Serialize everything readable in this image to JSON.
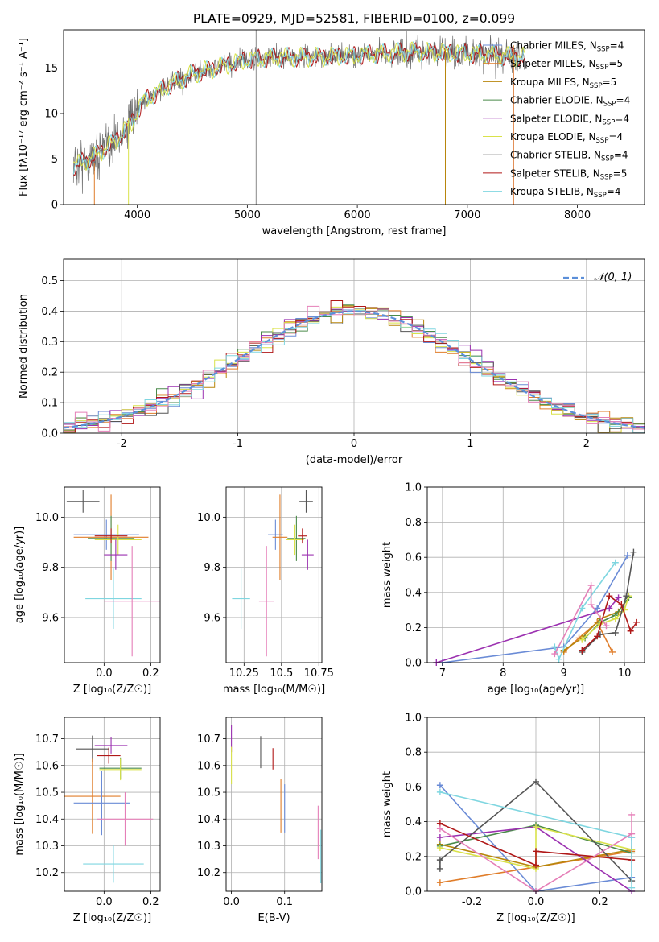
{
  "figure": {
    "title": "PLATE=0929, MJD=52581, FIBERID=0100, z=0.099"
  },
  "colors": {
    "Chabrier MILES": "#6a8bd6",
    "Salpeter MILES": "#e07d2a",
    "Kroupa MILES": "#b8860b",
    "Chabrier ELODIE": "#4a8a4a",
    "Salpeter ELODIE": "#9b30b0",
    "Kroupa ELODIE": "#d9e24a",
    "Chabrier STELIB": "#555555",
    "Salpeter STELIB": "#b01818",
    "Kroupa STELIB": "#7fd6e0",
    "pink": "#e57fb8",
    "dashed": "#5b8fd9"
  },
  "chart_data": [
    {
      "id": "spectrum",
      "type": "line",
      "xlabel": "wavelength [Angstrom, rest frame]",
      "ylabel": "Flux [fλ10⁻¹⁷ erg cm⁻² s⁻¹ A⁻¹]",
      "xlim": [
        3330,
        8610
      ],
      "ylim": [
        0,
        19.2
      ],
      "xticks": [
        4000,
        5000,
        6000,
        7000,
        8000
      ],
      "yticks": [
        0,
        5,
        10,
        15
      ],
      "grid": false,
      "legend_position": "top-right",
      "continuum": {
        "x": [
          3420,
          3600,
          3800,
          3950,
          4050,
          4300,
          4500,
          4800,
          5000,
          5300,
          5600,
          6000,
          6500,
          7000,
          7500
        ],
        "y": [
          4.2,
          5.2,
          7.0,
          9.0,
          11.3,
          13.2,
          14.3,
          15.3,
          15.9,
          16.2,
          16.2,
          16.4,
          16.8,
          16.6,
          16.2
        ]
      },
      "series": [
        {
          "name": "Chabrier MILES, N_SSP=4",
          "label": "Chabrier MILES, N",
          "nssp": "=4"
        },
        {
          "name": "Salpeter MILES, N_SSP=5",
          "label": "Salpeter MILES, N",
          "nssp": "=5"
        },
        {
          "name": "Kroupa MILES, N_SSP=5",
          "label": "Kroupa MILES, N",
          "nssp": "=5"
        },
        {
          "name": "Chabrier ELODIE, N_SSP=4",
          "label": "Chabrier ELODIE, N",
          "nssp": "=4"
        },
        {
          "name": "Salpeter ELODIE, N_SSP=4",
          "label": "Salpeter ELODIE, N",
          "nssp": "=4"
        },
        {
          "name": "Kroupa ELODIE, N_SSP=4",
          "label": "Kroupa ELODIE, N",
          "nssp": "=4"
        },
        {
          "name": "Chabrier STELIB, N_SSP=4",
          "label": "Chabrier STELIB, N",
          "nssp": "=4"
        },
        {
          "name": "Salpeter STELIB, N_SSP=5",
          "label": "Salpeter STELIB, N",
          "nssp": "=5"
        },
        {
          "name": "Kroupa STELIB, N_SSP=4",
          "label": "Kroupa STELIB, N",
          "nssp": "=4"
        }
      ],
      "spikes": [
        {
          "x": 3610,
          "y0": 0,
          "y1": 4.5,
          "color": "#e07d2a"
        },
        {
          "x": 3920,
          "y0": 0,
          "y1": 9.5,
          "color": "#d9e24a"
        },
        {
          "x": 5080,
          "y0": 0,
          "y1": 19.2,
          "color": "#888888"
        },
        {
          "x": 6800,
          "y0": 0,
          "y1": 17.0,
          "color": "#b8860b"
        },
        {
          "x": 7420,
          "y0": 0,
          "y1": 17.5,
          "color": "#e07d2a"
        },
        {
          "x": 7415,
          "y0": 0,
          "y1": 17.0,
          "color": "#b01818"
        }
      ]
    },
    {
      "id": "residuals",
      "type": "line",
      "xlabel": "(data-model)/error",
      "ylabel": "Normed distribution",
      "xlim": [
        -2.5,
        2.5
      ],
      "ylim": [
        0,
        0.57
      ],
      "xticks": [
        -2,
        -1,
        0,
        1,
        2
      ],
      "yticks": [
        0.0,
        0.1,
        0.2,
        0.3,
        0.4,
        0.5
      ],
      "grid": true,
      "legend_position": "top-right",
      "legend_label": "𝒩(0, 1)",
      "bins": {
        "start": -2.5,
        "width": 0.1,
        "count": 50
      }
    },
    {
      "id": "age_vs_Z",
      "type": "scatter",
      "xlabel": "Z [log₁₀(Z/Z☉)]",
      "ylabel": "age  [log₁₀(age/yr)]",
      "xlim": [
        -0.17,
        0.24
      ],
      "ylim": [
        9.42,
        10.12
      ],
      "xticks": [
        0.0,
        0.2
      ],
      "yticks": [
        9.6,
        9.8,
        10.0
      ],
      "grid": true,
      "points": [
        {
          "x": -0.09,
          "y": 10.063,
          "xerr": 0.07,
          "yerr": 0.045,
          "color": "#555555"
        },
        {
          "x": 0.01,
          "y": 9.93,
          "xerr": 0.14,
          "yerr": 0.06,
          "color": "#6a8bd6"
        },
        {
          "x": 0.03,
          "y": 9.92,
          "xerr": 0.16,
          "yerr": 0.17,
          "color": "#e07d2a"
        },
        {
          "x": 0.03,
          "y": 9.915,
          "xerr": 0.1,
          "yerr": 0.09,
          "color": "#4a8a4a"
        },
        {
          "x": 0.06,
          "y": 9.91,
          "xerr": 0.1,
          "yerr": 0.06,
          "color": "#d9e24a"
        },
        {
          "x": 0.03,
          "y": 9.925,
          "xerr": 0.07,
          "yerr": 0.03,
          "color": "#b01818"
        },
        {
          "x": 0.05,
          "y": 9.85,
          "xerr": 0.05,
          "yerr": 0.06,
          "color": "#9b30b0"
        },
        {
          "x": 0.04,
          "y": 9.675,
          "xerr": 0.12,
          "yerr": 0.12,
          "color": "#7fd6e0"
        },
        {
          "x": 0.12,
          "y": 9.665,
          "xerr": 0.12,
          "yerr": 0.22,
          "color": "#e57fb8"
        }
      ]
    },
    {
      "id": "age_vs_mass",
      "type": "scatter",
      "xlabel": "mass [log₁₀(M/M☉)]",
      "ylabel": "",
      "xlim": [
        10.13,
        10.77
      ],
      "ylim": [
        9.42,
        10.12
      ],
      "xticks": [
        10.25,
        10.5,
        10.75
      ],
      "yticks": [
        9.6,
        9.8,
        10.0
      ],
      "grid": true,
      "points": [
        {
          "x": 10.665,
          "y": 10.063,
          "xerr": 0.045,
          "yerr": 0.045,
          "color": "#555555"
        },
        {
          "x": 10.46,
          "y": 9.93,
          "xerr": 0.05,
          "yerr": 0.06,
          "color": "#6a8bd6"
        },
        {
          "x": 10.49,
          "y": 9.92,
          "xerr": 0.05,
          "yerr": 0.17,
          "color": "#e07d2a"
        },
        {
          "x": 10.6,
          "y": 9.915,
          "xerr": 0.06,
          "yerr": 0.09,
          "color": "#4a8a4a"
        },
        {
          "x": 10.59,
          "y": 9.91,
          "xerr": 0.06,
          "yerr": 0.06,
          "color": "#d9e24a"
        },
        {
          "x": 10.64,
          "y": 9.925,
          "xerr": 0.03,
          "yerr": 0.03,
          "color": "#b01818"
        },
        {
          "x": 10.675,
          "y": 9.85,
          "xerr": 0.04,
          "yerr": 0.06,
          "color": "#9b30b0"
        },
        {
          "x": 10.23,
          "y": 9.675,
          "xerr": 0.06,
          "yerr": 0.12,
          "color": "#7fd6e0"
        },
        {
          "x": 10.4,
          "y": 9.665,
          "xerr": 0.05,
          "yerr": 0.22,
          "color": "#e57fb8"
        }
      ]
    },
    {
      "id": "mass_weight_vs_age",
      "type": "line",
      "xlabel": "age  [log₁₀(age/yr)]",
      "ylabel": "mass weight",
      "xlim": [
        6.75,
        10.33
      ],
      "ylim": [
        0,
        1.0
      ],
      "xticks": [
        7,
        8,
        9,
        10
      ],
      "yticks": [
        0.0,
        0.2,
        0.4,
        0.6,
        0.8,
        1.0
      ],
      "grid": true,
      "series": [
        {
          "color": "#6a8bd6",
          "x": [
            7.0,
            9.0,
            9.55,
            10.05
          ],
          "y": [
            0.0,
            0.09,
            0.31,
            0.61
          ]
        },
        {
          "color": "#e07d2a",
          "x": [
            9.0,
            9.25,
            9.55,
            9.8
          ],
          "y": [
            0.06,
            0.14,
            0.23,
            0.06
          ]
        },
        {
          "color": "#b8860b",
          "x": [
            9.0,
            9.3,
            9.6,
            9.9,
            10.07
          ],
          "y": [
            0.07,
            0.14,
            0.25,
            0.29,
            0.37
          ]
        },
        {
          "color": "#4a8a4a",
          "x": [
            9.35,
            9.6,
            9.85,
            10.07
          ],
          "y": [
            0.14,
            0.23,
            0.27,
            0.37
          ]
        },
        {
          "color": "#9b30b0",
          "x": [
            6.9,
            9.75,
            9.9
          ],
          "y": [
            0.0,
            0.31,
            0.37
          ]
        },
        {
          "color": "#d9e24a",
          "x": [
            9.3,
            9.6,
            9.85,
            10.0,
            10.07
          ],
          "y": [
            0.13,
            0.22,
            0.25,
            0.3,
            0.38
          ]
        },
        {
          "color": "#555555",
          "x": [
            9.3,
            9.6,
            9.85,
            10.03,
            10.15
          ],
          "y": [
            0.06,
            0.16,
            0.17,
            0.38,
            0.63
          ]
        },
        {
          "color": "#b01818",
          "x": [
            9.3,
            9.55,
            9.75,
            9.95,
            10.1,
            10.2
          ],
          "y": [
            0.07,
            0.15,
            0.38,
            0.33,
            0.18,
            0.23
          ]
        },
        {
          "color": "#7fd6e0",
          "x": [
            8.85,
            8.92,
            9.3,
            9.85
          ],
          "y": [
            0.09,
            0.02,
            0.31,
            0.57
          ]
        },
        {
          "color": "#e57fb8",
          "x": [
            8.85,
            9.45,
            9.45,
            9.7
          ],
          "y": [
            0.05,
            0.44,
            0.33,
            0.21
          ]
        }
      ]
    },
    {
      "id": "mass_vs_Z",
      "type": "scatter",
      "xlabel": "Z [log₁₀(Z/Z☉)]",
      "ylabel": "mass [log₁₀(M/M☉)]",
      "xlim": [
        -0.17,
        0.24
      ],
      "ylim": [
        10.13,
        10.78
      ],
      "xticks": [
        0.0,
        0.2
      ],
      "yticks": [
        10.2,
        10.3,
        10.4,
        10.5,
        10.6,
        10.7
      ],
      "grid": true,
      "points": [
        {
          "x": -0.05,
          "y": 10.662,
          "xerr": 0.07,
          "yerr": 0.05,
          "color": "#555555"
        },
        {
          "x": 0.03,
          "y": 10.675,
          "xerr": 0.07,
          "yerr": 0.03,
          "color": "#9b30b0"
        },
        {
          "x": 0.02,
          "y": 10.637,
          "xerr": 0.05,
          "yerr": 0.03,
          "color": "#b01818"
        },
        {
          "x": 0.07,
          "y": 10.59,
          "xerr": 0.09,
          "yerr": 0.04,
          "color": "#4a8a4a"
        },
        {
          "x": 0.07,
          "y": 10.585,
          "xerr": 0.09,
          "yerr": 0.04,
          "color": "#d9e24a"
        },
        {
          "x": -0.05,
          "y": 10.485,
          "xerr": 0.12,
          "yerr": 0.14,
          "color": "#e07d2a"
        },
        {
          "x": -0.01,
          "y": 10.46,
          "xerr": 0.12,
          "yerr": 0.12,
          "color": "#6a8bd6"
        },
        {
          "x": 0.09,
          "y": 10.4,
          "xerr": 0.12,
          "yerr": 0.1,
          "color": "#e57fb8"
        },
        {
          "x": 0.04,
          "y": 10.232,
          "xerr": 0.13,
          "yerr": 0.07,
          "color": "#7fd6e0"
        }
      ]
    },
    {
      "id": "mass_vs_EBV",
      "type": "scatter",
      "xlabel": "E(B-V)",
      "ylabel": "",
      "xlim": [
        -0.01,
        0.17
      ],
      "ylim": [
        10.13,
        10.78
      ],
      "xticks": [
        0.0,
        0.1
      ],
      "yticks": [
        10.2,
        10.3,
        10.4,
        10.5,
        10.6,
        10.7
      ],
      "grid": true,
      "points": [
        {
          "x": 0.0,
          "y": 10.7,
          "xerr": 0,
          "yerr": 0.05,
          "color": "#9b30b0"
        },
        {
          "x": 0.0,
          "y": 10.6,
          "xerr": 0,
          "yerr": 0.07,
          "color": "#d9e24a"
        },
        {
          "x": 0.055,
          "y": 10.65,
          "xerr": 0,
          "yerr": 0.06,
          "color": "#555555"
        },
        {
          "x": 0.078,
          "y": 10.625,
          "xerr": 0,
          "yerr": 0.04,
          "color": "#b01818"
        },
        {
          "x": 0.093,
          "y": 10.45,
          "xerr": 0,
          "yerr": 0.1,
          "color": "#e07d2a"
        },
        {
          "x": 0.1,
          "y": 10.44,
          "xerr": 0,
          "yerr": 0.09,
          "color": "#6a8bd6"
        },
        {
          "x": 0.163,
          "y": 10.35,
          "xerr": 0,
          "yerr": 0.1,
          "color": "#e57fb8"
        },
        {
          "x": 0.168,
          "y": 10.26,
          "xerr": 0,
          "yerr": 0.1,
          "color": "#7fd6e0"
        }
      ]
    },
    {
      "id": "mass_weight_vs_Z",
      "type": "line",
      "xlabel": "Z [log₁₀(Z/Z☉)]",
      "ylabel": "mass weight",
      "xlim": [
        -0.34,
        0.34
      ],
      "ylim": [
        0,
        1.0
      ],
      "xticks": [
        -0.2,
        0.0,
        0.2
      ],
      "yticks": [
        0.0,
        0.2,
        0.4,
        0.6,
        0.8,
        1.0
      ],
      "grid": true,
      "series": [
        {
          "color": "#6a8bd6",
          "x": [
            -0.3,
            0.0,
            0.3,
            0.3
          ],
          "y": [
            0.61,
            0.0,
            0.08,
            0.31
          ]
        },
        {
          "color": "#e07d2a",
          "x": [
            -0.3,
            0.0,
            0.3
          ],
          "y": [
            0.05,
            0.14,
            0.23
          ]
        },
        {
          "color": "#b8860b",
          "x": [
            -0.3,
            0.0,
            0.3
          ],
          "y": [
            0.27,
            0.14,
            0.24
          ]
        },
        {
          "color": "#4a8a4a",
          "x": [
            -0.3,
            0.0,
            0.3
          ],
          "y": [
            0.26,
            0.38,
            0.22
          ]
        },
        {
          "color": "#9b30b0",
          "x": [
            -0.3,
            0.0,
            0.3
          ],
          "y": [
            0.31,
            0.37,
            0.0
          ]
        },
        {
          "color": "#d9e24a",
          "x": [
            -0.3,
            0.0,
            0.0,
            0.3
          ],
          "y": [
            0.25,
            0.13,
            0.37,
            0.24
          ]
        },
        {
          "color": "#555555",
          "x": [
            -0.3,
            -0.3,
            0.0,
            0.3
          ],
          "y": [
            0.13,
            0.18,
            0.63,
            0.06
          ]
        },
        {
          "color": "#b01818",
          "x": [
            -0.3,
            0.0,
            0.0,
            0.3
          ],
          "y": [
            0.39,
            0.15,
            0.23,
            0.18
          ]
        },
        {
          "color": "#7fd6e0",
          "x": [
            -0.3,
            0.3,
            0.3
          ],
          "y": [
            0.57,
            0.31,
            0.02
          ]
        },
        {
          "color": "#e57fb8",
          "x": [
            -0.3,
            0.0,
            0.3,
            0.3
          ],
          "y": [
            0.36,
            0.0,
            0.33,
            0.44
          ]
        }
      ]
    }
  ]
}
